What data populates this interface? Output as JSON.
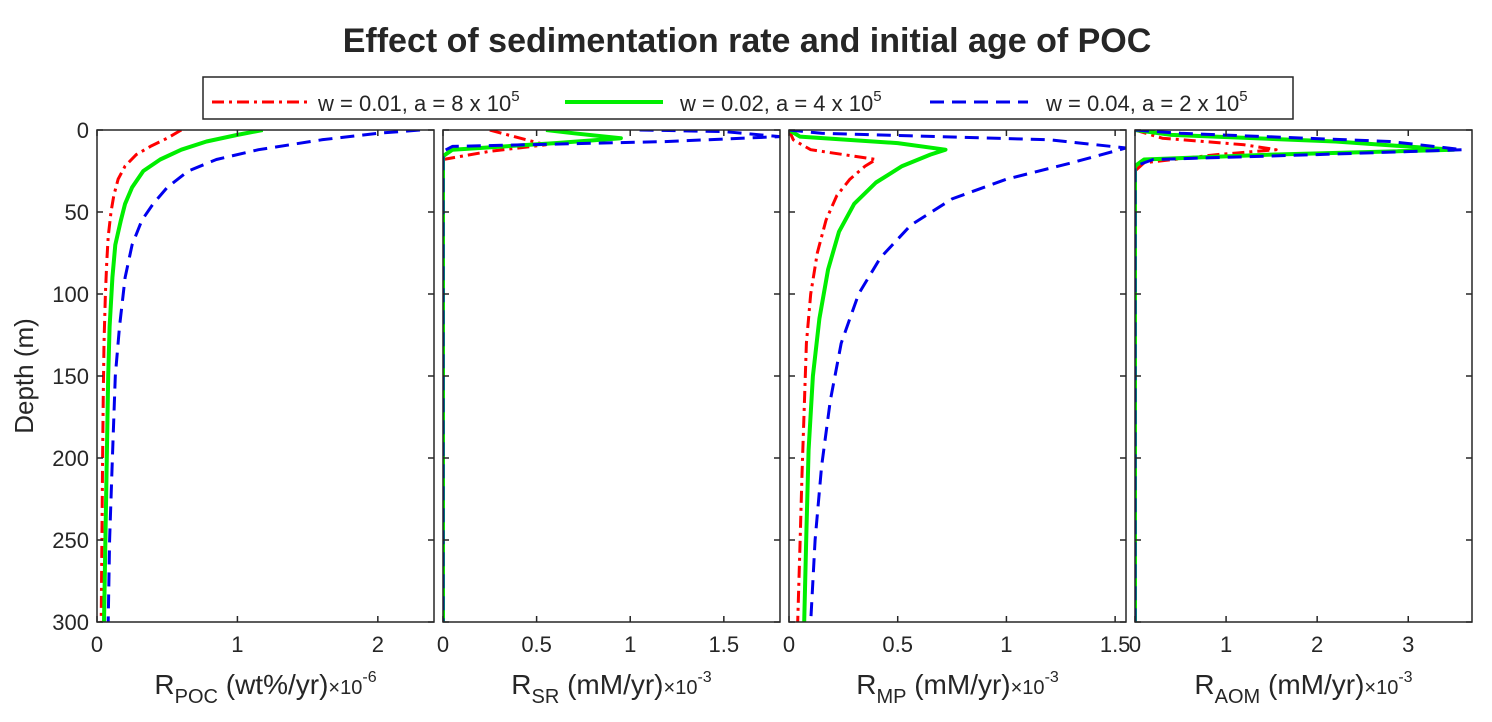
{
  "title": "Effect of sedimentation rate and initial age of POC",
  "legend": {
    "position": "top-center",
    "entries": [
      {
        "text": "w = 0.01, a = 8 x 10",
        "sup": "5",
        "color": "#ff0000",
        "style": "dashdot"
      },
      {
        "text": "w = 0.02, a = 4 x 10",
        "sup": "5",
        "color": "#00ee00",
        "style": "solid"
      },
      {
        "text": "w = 0.04, a = 2 x 10",
        "sup": "5",
        "color": "#0000ee",
        "style": "dashed"
      }
    ]
  },
  "chart_data": [
    {
      "type": "line",
      "ylabel": "Depth (m)",
      "ylim": [
        0,
        300
      ],
      "yticks": [
        "0",
        "50",
        "100",
        "150",
        "200",
        "250",
        "300"
      ],
      "y_reversed": true,
      "xlim": [
        0,
        2.4
      ],
      "xticks": [
        {
          "v": 0,
          "t": "0"
        },
        {
          "v": 1,
          "t": "1"
        },
        {
          "v": 2,
          "t": "2"
        }
      ],
      "xlabel": {
        "main": "R",
        "sub": "POC",
        "unit": " (wt%/yr)",
        "mult": "×10",
        "exp": "-6"
      },
      "series": [
        {
          "name": "w = 0.01, a = 8 x 10^5",
          "color": "#ff0000",
          "style": "dashdot",
          "x": [
            0.6,
            0.5,
            0.38,
            0.28,
            0.2,
            0.15,
            0.12,
            0.1,
            0.08,
            0.07,
            0.06,
            0.05,
            0.045,
            0.04,
            0.035,
            0.03
          ],
          "depth": [
            0,
            5,
            10,
            15,
            22,
            30,
            40,
            50,
            65,
            80,
            100,
            130,
            160,
            200,
            250,
            300
          ]
        },
        {
          "name": "w = 0.02, a = 4 x 10^5",
          "color": "#00ee00",
          "style": "solid",
          "x": [
            1.18,
            1.0,
            0.78,
            0.6,
            0.45,
            0.33,
            0.25,
            0.2,
            0.17,
            0.13,
            0.11,
            0.09,
            0.08,
            0.07,
            0.06,
            0.05
          ],
          "depth": [
            0,
            3,
            7,
            12,
            18,
            25,
            35,
            45,
            55,
            70,
            90,
            120,
            150,
            200,
            250,
            300
          ]
        },
        {
          "name": "w = 0.04, a = 2 x 10^5",
          "color": "#0000ee",
          "style": "dashed",
          "x": [
            2.3,
            2.0,
            1.6,
            1.15,
            0.85,
            0.65,
            0.5,
            0.4,
            0.32,
            0.25,
            0.2,
            0.16,
            0.13,
            0.11,
            0.09,
            0.08
          ],
          "depth": [
            0,
            2,
            6,
            12,
            18,
            25,
            35,
            45,
            55,
            70,
            90,
            120,
            150,
            200,
            250,
            300
          ]
        }
      ]
    },
    {
      "type": "line",
      "ylim": [
        0,
        300
      ],
      "y_reversed": true,
      "xlim": [
        0,
        1.8
      ],
      "xticks": [
        {
          "v": 0,
          "t": "0"
        },
        {
          "v": 0.5,
          "t": "0.5"
        },
        {
          "v": 1,
          "t": "1"
        },
        {
          "v": 1.5,
          "t": "1.5"
        }
      ],
      "xlabel": {
        "main": "R",
        "sub": "SR",
        "unit": " (mM/yr)",
        "mult": "×10",
        "exp": "-3"
      },
      "series": [
        {
          "name": "w = 0.01, a = 8 x 10^5",
          "color": "#ff0000",
          "style": "dashdot",
          "x": [
            0.25,
            0.38,
            0.55,
            0.25,
            0.0,
            0.0
          ],
          "depth": [
            0,
            4,
            9,
            13,
            18,
            300
          ]
        },
        {
          "name": "w = 0.02, a = 4 x 10^5",
          "color": "#00ee00",
          "style": "solid",
          "x": [
            0.55,
            0.7,
            0.95,
            0.6,
            0.05,
            0.0,
            0.0
          ],
          "depth": [
            0,
            2,
            5,
            8,
            12,
            16,
            300
          ]
        },
        {
          "name": "w = 0.04, a = 2 x 10^5",
          "color": "#0000ee",
          "style": "dashed",
          "x": [
            1.05,
            1.5,
            1.8,
            1.2,
            0.05,
            0.0,
            0.0
          ],
          "depth": [
            0,
            1,
            4,
            7,
            10,
            13,
            300
          ]
        }
      ]
    },
    {
      "type": "line",
      "ylim": [
        0,
        300
      ],
      "y_reversed": true,
      "xlim": [
        0,
        1.55
      ],
      "xticks": [
        {
          "v": 0,
          "t": "0"
        },
        {
          "v": 0.5,
          "t": "0.5"
        },
        {
          "v": 1,
          "t": "1"
        },
        {
          "v": 1.5,
          "t": "1.5"
        }
      ],
      "xlabel": {
        "main": "R",
        "sub": "MP",
        "unit": " (mM/yr)",
        "mult": "×10",
        "exp": "-3"
      },
      "series": [
        {
          "name": "w = 0.01, a = 8 x 10^5",
          "color": "#ff0000",
          "style": "dashdot",
          "x": [
            0.0,
            0.02,
            0.1,
            0.3,
            0.4,
            0.35,
            0.28,
            0.22,
            0.17,
            0.13,
            0.1,
            0.08,
            0.07,
            0.06,
            0.05,
            0.04
          ],
          "depth": [
            0,
            6,
            12,
            16,
            18,
            22,
            30,
            40,
            55,
            75,
            100,
            130,
            170,
            210,
            255,
            300
          ]
        },
        {
          "name": "w = 0.02, a = 4 x 10^5",
          "color": "#00ee00",
          "style": "solid",
          "x": [
            0.0,
            0.05,
            0.5,
            0.72,
            0.65,
            0.52,
            0.4,
            0.3,
            0.23,
            0.18,
            0.14,
            0.11,
            0.09,
            0.08,
            0.07
          ],
          "depth": [
            0,
            4,
            8,
            12,
            15,
            22,
            32,
            45,
            62,
            85,
            115,
            150,
            195,
            245,
            300
          ]
        },
        {
          "name": "w = 0.04, a = 2 x 10^5",
          "color": "#0000ee",
          "style": "dashed",
          "x": [
            0.0,
            0.15,
            1.2,
            1.55,
            1.3,
            1.0,
            0.75,
            0.56,
            0.42,
            0.32,
            0.24,
            0.19,
            0.15,
            0.12,
            0.1
          ],
          "depth": [
            0,
            2,
            6,
            11,
            20,
            30,
            42,
            58,
            78,
            100,
            130,
            165,
            205,
            250,
            300
          ]
        }
      ]
    },
    {
      "type": "line",
      "ylim": [
        0,
        300
      ],
      "y_reversed": true,
      "xlim": [
        0,
        3.7
      ],
      "xticks": [
        {
          "v": 0,
          "t": "0"
        },
        {
          "v": 1,
          "t": "1"
        },
        {
          "v": 2,
          "t": "2"
        },
        {
          "v": 3,
          "t": "3"
        }
      ],
      "xlabel": {
        "main": "R",
        "sub": "AOM",
        "unit": " (mM/yr)",
        "mult": "×10",
        "exp": "-3"
      },
      "series": [
        {
          "name": "w = 0.01, a = 8 x 10^5",
          "color": "#ff0000",
          "style": "dashdot",
          "x": [
            0.0,
            0.3,
            1.2,
            1.55,
            0.9,
            0.1,
            0.0,
            0.0
          ],
          "depth": [
            0,
            5,
            9,
            12,
            15,
            20,
            25,
            300
          ]
        },
        {
          "name": "w = 0.02, a = 4 x 10^5",
          "color": "#00ee00",
          "style": "solid",
          "x": [
            0.0,
            0.4,
            2.2,
            3.5,
            1.5,
            0.1,
            0.0,
            0.0
          ],
          "depth": [
            0,
            3,
            7,
            12,
            15,
            18,
            22,
            300
          ]
        },
        {
          "name": "w = 0.04, a = 2 x 10^5",
          "color": "#0000ee",
          "style": "dashed",
          "x": [
            0.0,
            0.5,
            2.8,
            3.6,
            2.0,
            0.2,
            0.0,
            0.0
          ],
          "depth": [
            0,
            2,
            7,
            12,
            15,
            18,
            22,
            300
          ]
        }
      ]
    }
  ]
}
